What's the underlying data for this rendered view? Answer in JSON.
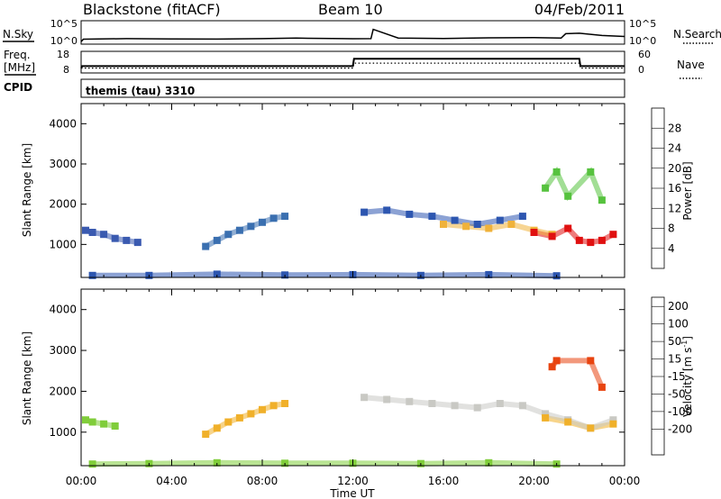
{
  "header": {
    "station": "Blackstone (fitACF)",
    "beam": "Beam 10",
    "date": "04/Feb/2011"
  },
  "strips": {
    "nsky_label": "N.Sky",
    "nsearch_label": "N.Search",
    "noise_ticks": [
      "10^5",
      "10^0"
    ],
    "freq_label_top": "Freq.",
    "freq_label_unit": "[MHz]",
    "freq_ticks": [
      "18",
      "8"
    ],
    "nave_label": "Nave",
    "nave_ticks": [
      "60",
      "0"
    ],
    "cpid_label": "CPID",
    "cpid_value": "themis (tau) 3310"
  },
  "axes": {
    "ylabel": "Slant Range [km]",
    "xlabel": "Time UT",
    "y_ticks": [
      "1000",
      "2000",
      "3000",
      "4000"
    ],
    "x_ticks": [
      "00:00",
      "04:00",
      "08:00",
      "12:00",
      "16:00",
      "20:00",
      "00:00"
    ]
  },
  "colorbars": {
    "power": {
      "label": "Power [dB]",
      "ticks": [
        "4",
        "8",
        "12",
        "16",
        "20",
        "24",
        "28"
      ],
      "colors": [
        "#0a28d8",
        "#2d56b0",
        "#3f8f6c",
        "#56c23e",
        "#f0b23a",
        "#f07a10",
        "#e83a0a",
        "#e01010"
      ]
    },
    "velocity": {
      "label": "Velocity [m s",
      "label_sup": "-1",
      "label_end": "]",
      "ticks": [
        "200",
        "100",
        "50",
        "15",
        "-15",
        "-50",
        "-100",
        "-200"
      ],
      "colors": [
        "#1a2fd0",
        "#3566a8",
        "#3d9a4d",
        "#80cd3a",
        "#c9c9c4",
        "#f0b02a",
        "#f07a10",
        "#e84410",
        "#e01010"
      ]
    }
  },
  "chart_data": [
    {
      "type": "line",
      "title": "N.Sky / N.Search",
      "x_unit": "hours UT",
      "x": [
        0,
        0.1,
        2,
        4,
        6,
        8,
        9.5,
        10,
        12,
        12.8,
        12.9,
        14,
        16,
        18,
        20,
        21.2,
        21.4,
        22,
        23,
        24
      ],
      "values": [
        1,
        2.6,
        3,
        2.8,
        2.7,
        3,
        3.3,
        3.2,
        2.9,
        3,
        9,
        3.4,
        3.1,
        3.5,
        3.6,
        3.3,
        6.2,
        6.5,
        5,
        4.4
      ],
      "ylim": [
        0,
        14
      ]
    },
    {
      "type": "line",
      "title": "Freq. / Nave",
      "x_unit": "hours UT",
      "series": [
        {
          "name": "Freq.",
          "x": [
            0,
            0.05,
            12,
            12.05,
            22,
            22.05,
            24
          ],
          "values": [
            10,
            11,
            11,
            14.7,
            14.7,
            11,
            11
          ]
        },
        {
          "name": "Nave",
          "x": [
            0,
            12,
            12.05,
            22,
            22.05,
            24
          ],
          "values": [
            10,
            10,
            12.5,
            12.5,
            10,
            10
          ]
        }
      ],
      "ylim": [
        8,
        18
      ]
    },
    {
      "type": "scatter",
      "title": "Power [dB]",
      "xlabel": "Time UT",
      "ylabel": "Slant Range [km]",
      "x_range_hours": [
        0,
        24
      ],
      "ylim": [
        180,
        4500
      ],
      "series": [
        {
          "x": [
            0.2,
            0.5,
            1.0,
            1.5,
            2.0,
            2.5
          ],
          "values": [
            1350,
            1300,
            1250,
            1150,
            1100,
            1050
          ],
          "color": "#3a5ab0"
        },
        {
          "x": [
            5.5,
            6.0,
            6.5,
            7.0,
            7.5,
            8.0,
            8.5,
            9.0
          ],
          "values": [
            950,
            1100,
            1250,
            1350,
            1450,
            1550,
            1650,
            1700
          ],
          "color": "#3a6fb0"
        },
        {
          "x": [
            12.5,
            13.5,
            14.5,
            15.5,
            16.5,
            17.5,
            18.5,
            19.5
          ],
          "values": [
            1800,
            1850,
            1750,
            1700,
            1600,
            1500,
            1600,
            1700
          ],
          "color": "#2d56b0"
        },
        {
          "x": [
            16.0,
            17.0,
            18.0,
            19.0,
            20.0,
            20.8
          ],
          "values": [
            1500,
            1450,
            1400,
            1500,
            1350,
            1250
          ],
          "color": "#f0b23a"
        },
        {
          "x": [
            20.0,
            20.8,
            21.5,
            22.0,
            22.5,
            23.0,
            23.5
          ],
          "values": [
            1300,
            1200,
            1400,
            1100,
            1050,
            1100,
            1250
          ],
          "color": "#e01010"
        },
        {
          "x": [
            20.5,
            21.0,
            21.5,
            22.5,
            23.0
          ],
          "values": [
            2400,
            2800,
            2200,
            2800,
            2100
          ],
          "color": "#56c23e"
        },
        {
          "x": [
            0.5,
            3,
            6,
            9,
            12,
            15,
            18,
            21
          ],
          "values": [
            230,
            230,
            260,
            240,
            250,
            230,
            250,
            220
          ],
          "color": "#2d56b0"
        }
      ]
    },
    {
      "type": "scatter",
      "title": "Velocity [m s-1]",
      "xlabel": "Time UT",
      "ylabel": "Slant Range [km]",
      "x_range_hours": [
        0,
        24
      ],
      "ylim": [
        180,
        4500
      ],
      "series": [
        {
          "x": [
            0.2,
            0.5,
            1.0,
            1.5
          ],
          "values": [
            1300,
            1250,
            1200,
            1150
          ],
          "color": "#80cd3a"
        },
        {
          "x": [
            5.5,
            6.0,
            6.5,
            7.0,
            7.5,
            8.0,
            8.5,
            9.0
          ],
          "values": [
            950,
            1100,
            1250,
            1350,
            1450,
            1550,
            1650,
            1700
          ],
          "color": "#f0b02a"
        },
        {
          "x": [
            12.5,
            13.5,
            14.5,
            15.5,
            16.5,
            17.5,
            18.5,
            19.5,
            20.5,
            21.5,
            22.5,
            23.5
          ],
          "values": [
            1850,
            1800,
            1750,
            1700,
            1650,
            1600,
            1700,
            1650,
            1450,
            1300,
            1100,
            1300
          ],
          "color": "#c9c9c4"
        },
        {
          "x": [
            20.5,
            21.5,
            22.5,
            23.5
          ],
          "values": [
            1350,
            1250,
            1100,
            1200
          ],
          "color": "#f0b02a"
        },
        {
          "x": [
            20.8,
            21.0,
            22.5,
            23.0
          ],
          "values": [
            2600,
            2750,
            2750,
            2100
          ],
          "color": "#e84410"
        },
        {
          "x": [
            0.5,
            3,
            6,
            9,
            12,
            15,
            18,
            21
          ],
          "values": [
            220,
            230,
            250,
            240,
            240,
            230,
            250,
            220
          ],
          "color": "#80cd3a"
        }
      ]
    }
  ]
}
